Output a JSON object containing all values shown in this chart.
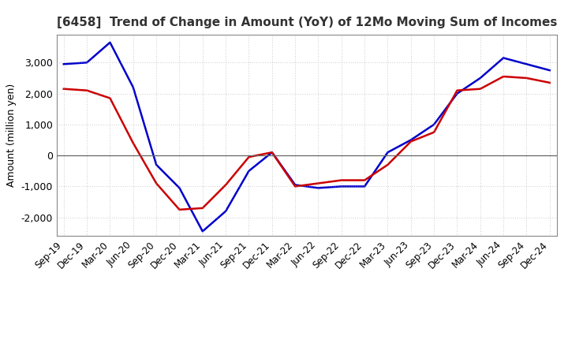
{
  "title": "[6458]  Trend of Change in Amount (YoY) of 12Mo Moving Sum of Incomes",
  "ylabel": "Amount (million yen)",
  "x_labels": [
    "Sep-19",
    "Dec-19",
    "Mar-20",
    "Jun-20",
    "Sep-20",
    "Dec-20",
    "Mar-21",
    "Jun-21",
    "Sep-21",
    "Dec-21",
    "Mar-22",
    "Jun-22",
    "Sep-22",
    "Dec-22",
    "Mar-23",
    "Jun-23",
    "Sep-23",
    "Dec-23",
    "Mar-24",
    "Jun-24",
    "Sep-24",
    "Dec-24"
  ],
  "ordinary_income": [
    2950,
    3000,
    3650,
    2200,
    -300,
    -1050,
    -2450,
    -1800,
    -500,
    100,
    -950,
    -1050,
    -1000,
    -1000,
    100,
    500,
    1000,
    2000,
    2500,
    3150,
    2950,
    2750
  ],
  "net_income": [
    2150,
    2100,
    1850,
    400,
    -900,
    -1750,
    -1700,
    -950,
    -50,
    100,
    -1000,
    -900,
    -800,
    -800,
    -300,
    450,
    750,
    2100,
    2150,
    2550,
    2500,
    2350
  ],
  "ordinary_income_color": "#0000cc",
  "net_income_color": "#cc0000",
  "ylim": [
    -2600,
    3900
  ],
  "yticks": [
    -2000,
    -1000,
    0,
    1000,
    2000,
    3000
  ],
  "background_color": "#FFFFFF",
  "plot_bg_color": "#FFFFFF",
  "grid_color": "#999999",
  "line_width": 1.8,
  "title_color": "#333333"
}
